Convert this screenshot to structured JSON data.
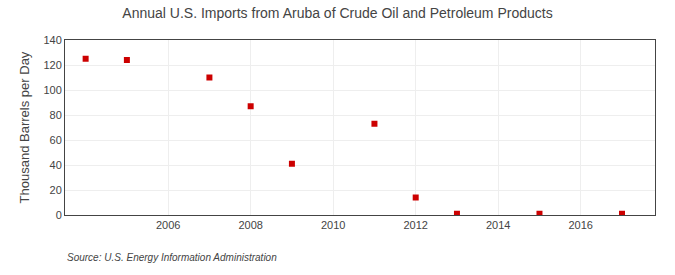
{
  "chart_data": {
    "type": "scatter",
    "title": "Annual U.S. Imports from Aruba of Crude Oil and Petroleum Products",
    "y_label": "Thousand Barrels per Day",
    "annotations": [
      "Source: U.S. Energy Information Administration"
    ],
    "x": [
      2004,
      2005,
      2007,
      2008,
      2009,
      2011,
      2012,
      2013,
      2015,
      2017
    ],
    "values": [
      125,
      124,
      110,
      87,
      41,
      73,
      14,
      1,
      1,
      1
    ],
    "color": "#cc0000",
    "marker": "square",
    "xlim": [
      2003.5,
      2017.8
    ],
    "xticks": [
      2006,
      2008,
      2010,
      2012,
      2014,
      2016
    ],
    "ylim": [
      0,
      140
    ],
    "yticks": [
      0,
      20,
      40,
      60,
      80,
      100,
      120,
      140
    ],
    "grid": true
  }
}
